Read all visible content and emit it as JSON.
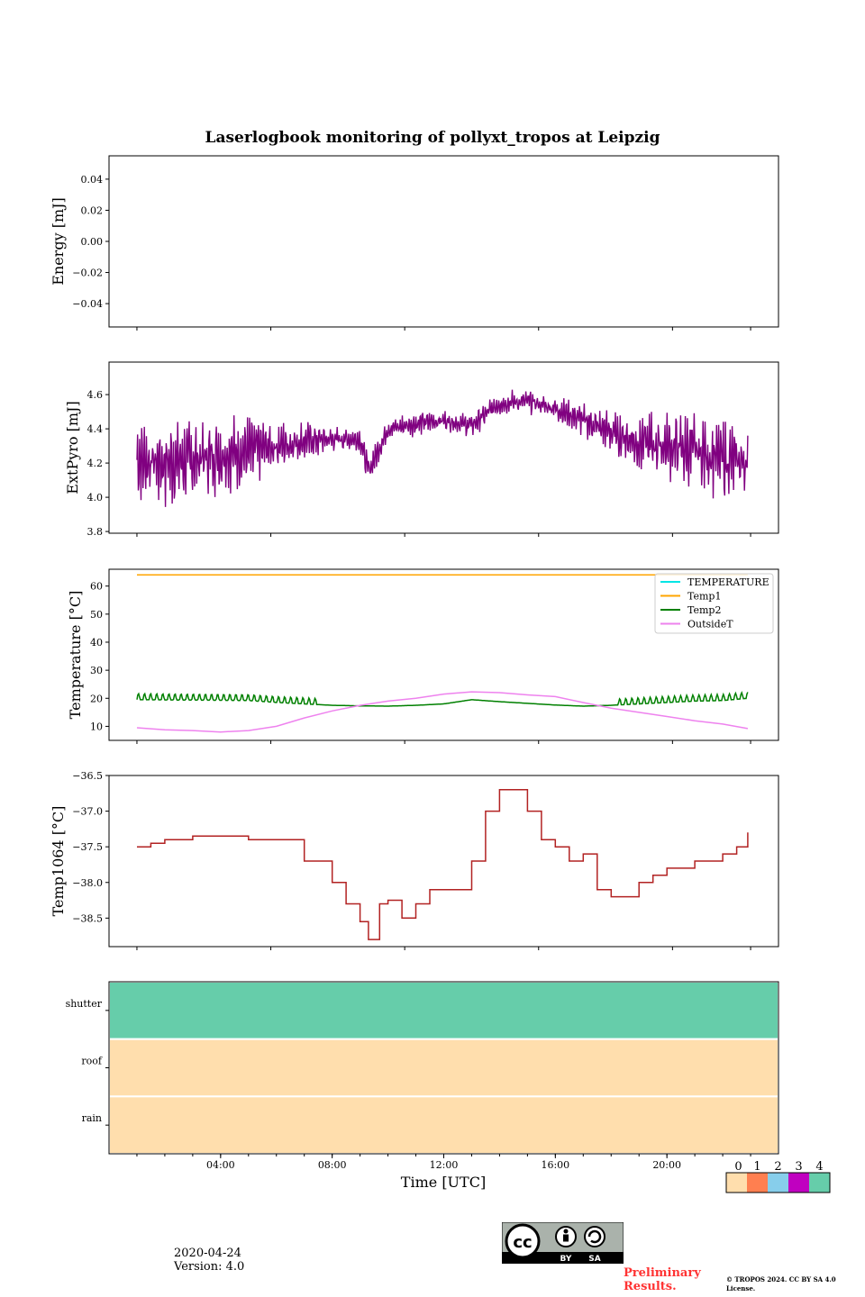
{
  "chart_data": [
    {
      "type": "line",
      "panel": "energy",
      "title": "Laserlogbook monitoring of pollyxt_tropos at Leipzig",
      "ylabel": "Energy [mJ]",
      "ylim": [
        -0.055,
        0.055
      ],
      "yticks": [
        -0.04,
        -0.02,
        0.0,
        0.02,
        0.04
      ],
      "ytick_labels": [
        "−0.04",
        "−0.02",
        "0.00",
        "0.02",
        "0.04"
      ],
      "series": []
    },
    {
      "type": "line",
      "panel": "extpyro",
      "ylabel": "ExtPyro [mJ]",
      "ylim": [
        3.79,
        4.79
      ],
      "yticks": [
        3.8,
        4.0,
        4.2,
        4.4,
        4.6
      ],
      "ytick_labels": [
        "3.8",
        "4.0",
        "4.2",
        "4.4",
        "4.6"
      ],
      "series": [
        {
          "name": "ExtPyro",
          "color": "#800080",
          "x_hours": [
            1.0,
            2.0,
            3.0,
            4.0,
            5.0,
            6.0,
            7.0,
            8.0,
            9.0,
            9.3,
            10.0,
            11.0,
            12.0,
            13.0,
            14.0,
            15.0,
            16.0,
            17.0,
            18.0,
            19.0,
            20.0,
            21.0,
            22.0,
            22.9
          ],
          "mean": [
            4.22,
            4.2,
            4.22,
            4.25,
            4.27,
            4.3,
            4.33,
            4.34,
            4.34,
            4.15,
            4.4,
            4.43,
            4.45,
            4.42,
            4.55,
            4.56,
            4.52,
            4.45,
            4.38,
            4.32,
            4.3,
            4.27,
            4.22,
            4.2
          ],
          "amp": [
            0.2,
            0.22,
            0.2,
            0.19,
            0.17,
            0.13,
            0.1,
            0.06,
            0.06,
            0.08,
            0.05,
            0.06,
            0.05,
            0.06,
            0.06,
            0.06,
            0.06,
            0.08,
            0.1,
            0.15,
            0.17,
            0.19,
            0.2,
            0.15
          ]
        }
      ]
    },
    {
      "type": "line",
      "panel": "temperature",
      "ylabel": "Temperature [°C]",
      "ylim": [
        5,
        66
      ],
      "yticks": [
        10,
        20,
        30,
        40,
        50,
        60
      ],
      "ytick_labels": [
        "10",
        "20",
        "30",
        "40",
        "50",
        "60"
      ],
      "legend_location": "top-right",
      "series": [
        {
          "name": "TEMPERATURE",
          "color": "#00e5e5",
          "x_hours": [],
          "values": []
        },
        {
          "name": "Temp1",
          "color": "#ffa500",
          "x_hours": [
            1.0,
            22.9
          ],
          "values": [
            64,
            64
          ]
        },
        {
          "name": "Temp2",
          "color": "#008000",
          "x_hours": [
            1.0,
            5.0,
            6.0,
            7.0,
            8.0,
            9.0,
            10.0,
            11.0,
            12.0,
            13.0,
            14.0,
            15.0,
            16.0,
            17.0,
            18.0,
            19.0,
            20.0,
            21.0,
            22.0,
            22.9
          ],
          "values": [
            19.5,
            19.2,
            18.5,
            18.0,
            17.5,
            17.3,
            17.2,
            17.5,
            18.0,
            19.5,
            18.8,
            18.2,
            17.6,
            17.2,
            17.5,
            18.0,
            18.5,
            19.0,
            19.2,
            20.0
          ]
        },
        {
          "name": "OutsideT",
          "color": "#ee82ee",
          "x_hours": [
            1.0,
            2.0,
            3.0,
            4.0,
            5.0,
            6.0,
            7.0,
            8.0,
            9.0,
            10.0,
            11.0,
            12.0,
            13.0,
            14.0,
            15.0,
            16.0,
            17.0,
            18.0,
            19.0,
            20.0,
            21.0,
            22.0,
            22.9
          ],
          "values": [
            9.5,
            8.8,
            8.5,
            8.0,
            8.5,
            10.0,
            13.0,
            15.5,
            17.5,
            19.0,
            20.0,
            21.5,
            22.3,
            22.0,
            21.2,
            20.6,
            18.5,
            16.5,
            15.0,
            13.5,
            12.0,
            10.8,
            9.2
          ]
        }
      ]
    },
    {
      "type": "line",
      "panel": "temp1064",
      "ylabel": "Temp1064 [°C]",
      "ylim": [
        -38.9,
        -36.5
      ],
      "yticks": [
        -38.5,
        -38.0,
        -37.5,
        -37.0,
        -36.5
      ],
      "ytick_labels": [
        "−38.5",
        "−38.0",
        "−37.5",
        "−37.0",
        "−36.5"
      ],
      "series": [
        {
          "name": "Temp1064",
          "color": "#b22222",
          "x_hours": [
            1.0,
            1.5,
            2.0,
            3.0,
            4.0,
            5.0,
            6.0,
            7.0,
            8.0,
            8.5,
            9.0,
            9.3,
            9.7,
            10.0,
            10.5,
            11.0,
            11.5,
            12.0,
            12.5,
            13.0,
            13.5,
            14.0,
            14.5,
            15.0,
            15.5,
            16.0,
            16.5,
            17.0,
            17.5,
            18.0,
            18.5,
            19.0,
            19.5,
            20.0,
            21.0,
            22.0,
            22.5,
            22.9
          ],
          "values": [
            -37.5,
            -37.45,
            -37.4,
            -37.35,
            -37.35,
            -37.4,
            -37.4,
            -37.7,
            -38.0,
            -38.3,
            -38.55,
            -38.8,
            -38.3,
            -38.25,
            -38.5,
            -38.3,
            -38.1,
            -38.1,
            -38.1,
            -37.7,
            -37.0,
            -36.7,
            -36.7,
            -37.0,
            -37.4,
            -37.5,
            -37.7,
            -37.6,
            -38.1,
            -38.2,
            -38.2,
            -38.0,
            -37.9,
            -37.8,
            -37.7,
            -37.6,
            -37.5,
            -37.3
          ]
        }
      ]
    },
    {
      "type": "heatmap",
      "panel": "status",
      "rows": [
        "shutter",
        "roof",
        "rain"
      ],
      "row_values": [
        4,
        0,
        0
      ],
      "xlabel": "Time [UTC]",
      "xlim_hours": [
        0,
        24
      ],
      "xticks_hours": [
        4,
        8,
        12,
        16,
        20
      ],
      "xtick_labels": [
        "04:00",
        "08:00",
        "12:00",
        "16:00",
        "20:00"
      ],
      "colorbar": {
        "labels": [
          "0",
          "1",
          "2",
          "3",
          "4"
        ],
        "colors": [
          "#ffdead",
          "#ff7f50",
          "#87ceeb",
          "#c000c0",
          "#66cdaa"
        ]
      }
    }
  ],
  "footer": {
    "date": "2020-04-24",
    "version": "Version: 4.0",
    "preliminary": "Preliminary Results.",
    "copyright": "© TROPOS 2024. CC BY SA 4.0 License.",
    "cc_by": "BY",
    "cc_sa": "SA",
    "cc_mark": "cc"
  }
}
